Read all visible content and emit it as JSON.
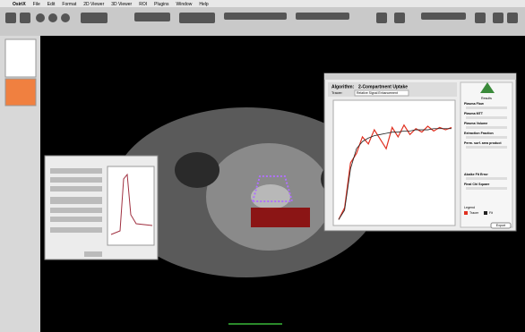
{
  "menubar": [
    "OsiriX",
    "File",
    "Edit",
    "Format",
    "2D Viewer",
    "3D Viewer",
    "ROI",
    "Plugins",
    "Window",
    "Help"
  ],
  "window": {
    "algorithm_label": "Algorithm:",
    "algorithm": "2-Compartment Uptake",
    "tracer_label": "Tracer:",
    "tracer": "Relative Signal Enhancement",
    "results_title": "Results",
    "results": [
      "Plasma Flow",
      "Plasma MTT",
      "Plasma Volume",
      "Extraction Fraction",
      "Perm. surf. area product",
      "Akaike Fit Error",
      "Final Chi Square"
    ],
    "legend_title": "Legend",
    "legend": [
      "Tracer",
      "Fit"
    ],
    "button": "Export"
  },
  "plot": {
    "x": [
      0,
      5,
      10,
      15,
      20,
      25,
      30,
      35,
      40,
      45,
      50,
      55,
      60,
      65,
      70,
      75,
      80,
      85,
      90,
      95
    ],
    "xlim": [
      0,
      95
    ],
    "ylim": [
      0,
      1
    ],
    "tracer": [
      0.02,
      0.12,
      0.5,
      0.58,
      0.72,
      0.66,
      0.78,
      0.7,
      0.62,
      0.8,
      0.72,
      0.82,
      0.74,
      0.79,
      0.76,
      0.81,
      0.77,
      0.8,
      0.78,
      0.8
    ],
    "fit": [
      0.02,
      0.1,
      0.45,
      0.62,
      0.68,
      0.71,
      0.73,
      0.74,
      0.75,
      0.76,
      0.76,
      0.77,
      0.77,
      0.78,
      0.78,
      0.78,
      0.79,
      0.79,
      0.79,
      0.79
    ]
  }
}
